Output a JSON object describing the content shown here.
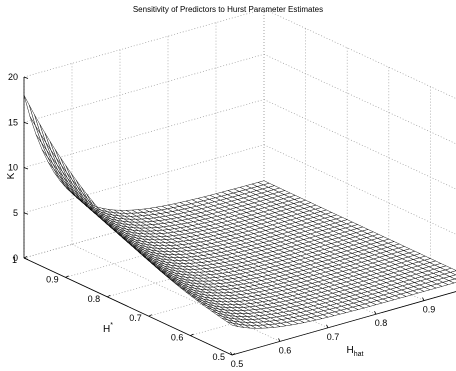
{
  "chart_data": {
    "type": "surface",
    "title": "Sensitivity of Predictors to Hurst Parameter Estimates",
    "xlabel": "H_hat",
    "ylabel": "H*",
    "zlabel": "K",
    "x": {
      "range": [
        0.5,
        1.0
      ],
      "ticks": [
        0.5,
        0.6,
        0.7,
        0.8,
        0.9
      ]
    },
    "y": {
      "range": [
        0.5,
        1.0
      ],
      "ticks": [
        0.5,
        0.6,
        0.7,
        0.8,
        0.9,
        1
      ]
    },
    "zlim": [
      0,
      20
    ],
    "zticks": [
      0,
      5,
      10,
      15,
      20
    ],
    "grid": true,
    "mesh_color": "#000000",
    "face_color": "#ffffff",
    "description_values": {
      "peak_K": 18,
      "peak_at": {
        "H_hat": 0.5,
        "H_star": 1.0
      },
      "flat_level_K": 1
    }
  }
}
